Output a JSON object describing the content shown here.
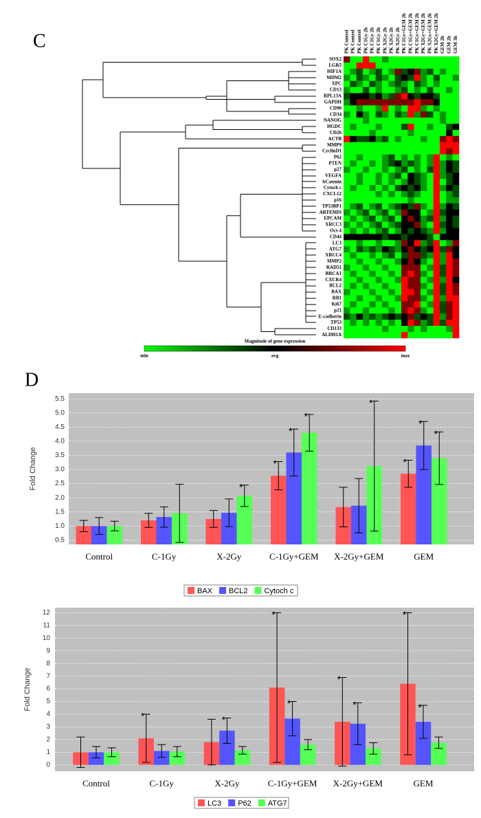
{
  "panels": [
    "C",
    "D"
  ],
  "chart_data": [
    {
      "type": "heatmap",
      "columns": [
        "PK Control",
        "PK Control",
        "PK Control",
        "PK C1Gy 2h",
        "PK C1Gy 2h",
        "PK C1Gy 2h",
        "PK X2Gy 2h",
        "PK X2Gy 2h",
        "PK X2Gy 2h",
        "PK C1Gy+GEM 2h",
        "PK C1Gy+GEM 2h",
        "PK C1Gy+GEM 2h",
        "PK X2Gy+GEM 2h",
        "PK X2Gy+GEM 2h",
        "PK X2Gy+GEM 2h",
        "GEM 2h",
        "GEM 2h",
        "GEM 3h"
      ],
      "rows": [
        "SOX2",
        "LGR5",
        "HIF1A",
        "MDM2",
        "XPC",
        "CD13",
        "RPL13A",
        "GAPDH",
        "CD90",
        "CD34",
        "NANOG",
        "HGDC",
        "CD26",
        "ACTB",
        "MMP9",
        "CyclinD1",
        "P62",
        "PTEN",
        "p27",
        "VEGFA",
        "bCatenin",
        "Cytoch c",
        "CXCL12",
        "p16",
        "TP53BP1",
        "ARTEMIS",
        "EPCAM",
        "XRCC3",
        "Oct-4",
        "CD44",
        "LC3",
        "ATG7",
        "XRCC4",
        "MMP2",
        "RAD51",
        "BRCA1",
        "CXCR4",
        "BCL2",
        "BAX",
        "RB1",
        "Ki67",
        "p21",
        "E-cadherin",
        "TP53",
        "CD133",
        "ALDH1A"
      ],
      "values": [
        [
          0.5,
          -1,
          -1,
          1,
          -1,
          -1,
          -0.6,
          -1,
          -1,
          -1,
          -1,
          -1,
          -1,
          -1,
          -1,
          -1,
          -1,
          -1
        ],
        [
          -1,
          -1,
          1,
          1,
          1,
          -1,
          -1,
          -1,
          -1,
          -1,
          -1,
          -1,
          -1,
          -1,
          -1,
          -1,
          -1,
          -1
        ],
        [
          -1,
          -0.6,
          -0.3,
          -1,
          -0.6,
          -0.3,
          -1,
          -0.6,
          0.5,
          -0.3,
          0,
          0.5,
          -0.6,
          -0.3,
          -1,
          -0.6,
          -1,
          -1
        ],
        [
          -0.6,
          -1,
          -0.3,
          -0.6,
          -1,
          -0.3,
          -0.6,
          -1,
          -0.3,
          0,
          -0.3,
          1,
          -0.6,
          -1,
          -0.3,
          -1,
          -1,
          -0.6
        ],
        [
          -1,
          -0.3,
          -0.6,
          -1,
          -0.3,
          -0.6,
          -1,
          -0.6,
          -0.3,
          -0.6,
          -1,
          -0.3,
          -0.6,
          -1,
          -0.6,
          -1,
          -1,
          -1
        ],
        [
          -0.6,
          -1,
          -1,
          -0.3,
          -1,
          -0.6,
          -1,
          -1,
          -0.6,
          -0.3,
          -1,
          -0.6,
          -1,
          -0.3,
          -1,
          -1,
          -0.6,
          -1
        ],
        [
          -0.3,
          0,
          0,
          0,
          -0.3,
          0,
          -0.6,
          -0.3,
          0.5,
          1,
          0,
          -0.3,
          0,
          0,
          -0.3,
          -1,
          -1,
          -1
        ],
        [
          -0.6,
          0,
          0.5,
          0.5,
          0.5,
          0.5,
          0.5,
          0.5,
          0.5,
          0.5,
          0.5,
          1,
          0.5,
          0.5,
          0,
          -1,
          -1,
          -1
        ],
        [
          -1,
          -1,
          -0.6,
          -1,
          -1,
          -0.6,
          1,
          -1,
          -0.6,
          -1,
          1,
          1,
          -0.6,
          -1,
          -0.6,
          -1,
          -1,
          -1
        ],
        [
          -0.6,
          -1,
          0,
          -0.6,
          -1,
          -0.3,
          -0.6,
          -1,
          -0.3,
          -0.6,
          1,
          -0.6,
          0.5,
          -0.3,
          -1,
          -0.6,
          -1,
          -1
        ],
        [
          -1,
          -1,
          -1,
          -0.6,
          -1,
          -1,
          -1,
          -1,
          -1,
          -1,
          -1,
          -1,
          -1,
          -1,
          -1,
          -0.6,
          -1,
          -1
        ],
        [
          -1,
          -0.6,
          -1,
          -1,
          -1,
          -0.6,
          -1,
          -1,
          -1,
          -0.3,
          1,
          -1,
          -1,
          -0.6,
          -1,
          -1,
          -0.3,
          0
        ],
        [
          -1,
          -1,
          -1,
          -1,
          -0.6,
          -1,
          -1,
          -1,
          -1,
          -1,
          -0.6,
          -1,
          -1,
          -1,
          -1,
          -1,
          0,
          -1
        ],
        [
          1,
          0,
          -0.3,
          -0.3,
          0,
          -0.6,
          -0.3,
          -1,
          -0.6,
          -1,
          -1,
          -1,
          -0.6,
          -1,
          -1,
          0.5,
          1,
          0.5
        ],
        [
          -1,
          -1,
          -1,
          -1,
          -1,
          -1,
          -1,
          -1,
          -1,
          -1,
          -1,
          -1,
          -1,
          -1,
          -1,
          1,
          1,
          1
        ],
        [
          -1,
          -1,
          -1,
          -1,
          -1,
          -1,
          -1,
          -1,
          -1,
          -1,
          -1,
          -1,
          -1,
          -1,
          -1,
          1,
          0.5,
          1
        ],
        [
          -1,
          -1,
          -0.6,
          -1,
          -1,
          -1,
          -0.6,
          -0.3,
          -1,
          -0.6,
          -1,
          -0.6,
          -1,
          -0.6,
          1,
          -1,
          -0.6,
          -1
        ],
        [
          -1,
          -0.6,
          -1,
          -1,
          -0.6,
          -1,
          -0.6,
          -0.3,
          0,
          -0.6,
          -0.3,
          -0.6,
          -1,
          -0.6,
          1,
          -0.6,
          0,
          -0.3
        ],
        [
          -0.6,
          -1,
          -1,
          -0.6,
          -1,
          -1,
          -0.6,
          -1,
          -0.6,
          -0.3,
          -1,
          -0.6,
          -1,
          -0.3,
          1,
          -0.6,
          0,
          -0.3
        ],
        [
          -1,
          -1,
          -0.6,
          -1,
          -1,
          -0.6,
          -1,
          -0.6,
          -0.3,
          -1,
          0,
          -0.3,
          -0.6,
          -1,
          1,
          -0.6,
          -0.3,
          0
        ],
        [
          -1,
          -1,
          -0.6,
          -1,
          -1,
          -0.6,
          -1,
          -0.6,
          -1,
          -0.6,
          0,
          -0.3,
          -0.6,
          -1,
          1,
          -1,
          -0.3,
          0
        ],
        [
          -1,
          -0.6,
          -1,
          -1,
          -0.6,
          -1,
          -0.6,
          -1,
          -0.3,
          0,
          -0.3,
          0,
          -0.6,
          -1,
          1,
          -0.6,
          0,
          -0.3
        ],
        [
          -1,
          -1,
          -1,
          -1,
          -1,
          -0.6,
          -1,
          -0.6,
          -1,
          -0.6,
          -0.3,
          -0.6,
          -1,
          -1,
          1,
          -1,
          -0.6,
          -0.3
        ],
        [
          -1,
          -1,
          -1,
          -1,
          -1,
          -1,
          -1,
          -1,
          -1,
          -1,
          -0.6,
          -1,
          -1,
          -1,
          1,
          -1,
          -0.6,
          -0.6
        ],
        [
          -1,
          -0.6,
          -0.3,
          -1,
          -0.6,
          -0.3,
          -1,
          -0.6,
          -0.3,
          0,
          -0.3,
          0.5,
          -0.6,
          -1,
          1,
          -0.6,
          0,
          -0.3
        ],
        [
          -0.6,
          -1,
          -0.6,
          -0.3,
          -1,
          -0.6,
          -0.3,
          -1,
          -0.6,
          0.5,
          0,
          0,
          -1,
          -0.6,
          1,
          -0.3,
          0,
          0
        ],
        [
          -1,
          -0.6,
          -1,
          -0.6,
          -0.3,
          -1,
          -0.6,
          -0.3,
          -1,
          0,
          0.5,
          0,
          -0.6,
          -0.3,
          1,
          -0.6,
          0,
          -0.3
        ],
        [
          -0.6,
          -1,
          -0.6,
          -1,
          -0.6,
          -0.3,
          -1,
          -0.6,
          -0.3,
          0,
          0,
          0.5,
          -0.6,
          -1,
          1,
          -0.3,
          0,
          -0.3
        ],
        [
          -1,
          -0.6,
          -1,
          -0.6,
          -1,
          -0.6,
          -0.3,
          -1,
          -0.6,
          0,
          -0.3,
          0,
          -0.3,
          -0.6,
          1,
          -0.6,
          0,
          0
        ],
        [
          0,
          0,
          0,
          0,
          0,
          0,
          -0.3,
          0,
          0,
          -0.3,
          0,
          0,
          0,
          -0.3,
          -1,
          0,
          0,
          0
        ],
        [
          -1,
          -1,
          -0.6,
          -1,
          -1,
          -0.6,
          -1,
          -1,
          -0.6,
          0.5,
          0,
          1,
          -0.6,
          -0.3,
          1,
          -1,
          -0.6,
          0.5
        ],
        [
          -0.6,
          -1,
          -0.3,
          -0.6,
          -0.3,
          -0.6,
          0,
          -0.3,
          -0.6,
          0,
          0.5,
          0,
          -0.3,
          0,
          1,
          -0.3,
          0.5,
          0
        ],
        [
          -1,
          -0.6,
          -1,
          -1,
          -0.6,
          -1,
          -0.6,
          -0.3,
          -1,
          -0.3,
          0.5,
          0.5,
          -0.3,
          -0.6,
          1,
          -0.6,
          1,
          0
        ],
        [
          -1,
          -1,
          -0.6,
          -1,
          -1,
          -0.6,
          -1,
          -1,
          -0.6,
          0,
          0.5,
          0,
          -0.6,
          -1,
          1,
          -0.6,
          1,
          0.5
        ],
        [
          -0.6,
          -1,
          -1,
          -0.6,
          -1,
          -1,
          -0.6,
          -1,
          -1,
          0.5,
          0.5,
          0.5,
          -1,
          -0.6,
          1,
          -0.3,
          1,
          0.5
        ],
        [
          -1,
          -0.6,
          -1,
          -1,
          -0.6,
          -1,
          -1,
          -0.6,
          -1,
          0.5,
          1,
          0.5,
          -0.6,
          -1,
          1,
          -0.3,
          1,
          0.5
        ],
        [
          -1,
          -1,
          -0.6,
          -1,
          -1,
          -0.6,
          -1,
          -1,
          -0.6,
          1,
          0.5,
          0.5,
          -1,
          -0.6,
          1,
          -0.6,
          1,
          0
        ],
        [
          -1,
          -0.6,
          -1,
          -0.6,
          -1,
          -1,
          -0.6,
          -1,
          -1,
          1,
          0.5,
          0.5,
          -0.6,
          -1,
          1,
          -0.3,
          1,
          0.5
        ],
        [
          -0.6,
          -1,
          -1,
          -1,
          -0.6,
          -1,
          -1,
          -0.6,
          -1,
          1,
          1,
          0.5,
          -1,
          -0.6,
          1,
          -0.3,
          1,
          0.5
        ],
        [
          -1,
          -1,
          -0.6,
          -1,
          -1,
          -0.6,
          -1,
          -1,
          -0.6,
          1,
          0.5,
          0.5,
          -0.6,
          -1,
          1,
          -0.6,
          1,
          1
        ],
        [
          -1,
          -0.6,
          -1,
          -1,
          -0.6,
          -1,
          -0.6,
          -1,
          -1,
          0.5,
          0.5,
          1,
          -1,
          -0.6,
          1,
          -0.3,
          0.5,
          1
        ],
        [
          -0.6,
          -1,
          -1,
          -0.6,
          -1,
          -1,
          -1,
          -0.6,
          -1,
          0.5,
          1,
          0.5,
          -0.6,
          -1,
          1,
          -0.3,
          0.5,
          1
        ],
        [
          -0.3,
          -0.6,
          0,
          -0.6,
          -0.3,
          -0.6,
          -0.3,
          0,
          -0.3,
          0,
          0.5,
          -0.3,
          0,
          -0.3,
          1,
          -0.6,
          0.5,
          1
        ],
        [
          -1,
          -0.6,
          -1,
          -0.6,
          -1,
          -0.6,
          -1,
          -0.6,
          -1,
          0,
          1,
          0.5,
          -0.6,
          -0.3,
          1,
          -0.3,
          1,
          1
        ],
        [
          -1,
          -1,
          -1,
          -1,
          -1,
          -1,
          -0.6,
          -1,
          -1,
          -1,
          -0.6,
          -1,
          -0.6,
          -1,
          -1,
          -1,
          -0.6,
          1
        ],
        [
          -1,
          -1,
          -1,
          -1,
          -1,
          -1,
          -1,
          -1,
          -1,
          1,
          -1,
          -1,
          -1,
          -1,
          -1,
          -1,
          -1,
          1
        ]
      ],
      "vlim": [
        -1,
        1
      ],
      "color_min": "#00ff00",
      "color_mid": "#000000",
      "color_max": "#ff0000",
      "colorbar_title": "Magnitude of gene expression",
      "colorbar_labels": [
        "min",
        "avg",
        "max"
      ]
    },
    {
      "type": "bar",
      "ylabel": "Fold Change",
      "categories": [
        "Control",
        "C-1Gy",
        "X-2Gy",
        "C-1Gy+GEM",
        "X-2Gy+GEM",
        "GEM"
      ],
      "series": [
        {
          "name": "BAX",
          "color": "#ff5555",
          "values": [
            1.0,
            1.2,
            1.25,
            2.78,
            1.67,
            2.85
          ],
          "errors": [
            0.2,
            0.25,
            0.3,
            0.5,
            0.7,
            0.48
          ],
          "significance": [
            null,
            null,
            null,
            "*",
            null,
            "*"
          ]
        },
        {
          "name": "BCL2",
          "color": "#5555ff",
          "values": [
            1.0,
            1.32,
            1.47,
            3.6,
            1.72,
            3.85
          ],
          "errors": [
            0.3,
            0.36,
            0.49,
            0.83,
            0.96,
            0.85
          ],
          "significance": [
            null,
            null,
            null,
            "*",
            null,
            "*"
          ]
        },
        {
          "name": "Cytoch c",
          "color": "#55ff55",
          "values": [
            1.0,
            1.45,
            2.07,
            4.3,
            3.12,
            3.4
          ],
          "errors": [
            0.17,
            1.03,
            0.38,
            0.65,
            2.3,
            0.93
          ],
          "significance": [
            null,
            null,
            "*",
            "*",
            "*",
            "*"
          ]
        }
      ],
      "ylim": [
        0.35,
        5.7
      ],
      "yticks": [
        0.5,
        {
          "value": 1,
          "label": "1.0"
        },
        1.5,
        {
          "value": 2,
          "label": "2.0"
        },
        2.5,
        {
          "value": 3,
          "label": "3.0"
        },
        3.5,
        {
          "value": 4,
          "label": "4.0"
        },
        4.5,
        {
          "value": 5,
          "label": "5.0"
        },
        5.5
      ],
      "grid": true
    },
    {
      "type": "bar",
      "ylabel": "Fold Change",
      "categories": [
        "Control",
        "C-1Gy",
        "X-2Gy",
        "C-1Gy+GEM",
        "X-2Gy+GEM",
        "GEM"
      ],
      "series": [
        {
          "name": "LC3",
          "color": "#ff5555",
          "values": [
            1.0,
            2.1,
            1.8,
            6.1,
            3.4,
            6.4
          ],
          "errors": [
            1.2,
            1.9,
            1.8,
            5.9,
            3.5,
            5.6
          ],
          "significance": [
            null,
            "*",
            null,
            "*",
            "*",
            "*"
          ]
        },
        {
          "name": "P62",
          "color": "#5555ff",
          "values": [
            1.0,
            1.1,
            2.7,
            3.65,
            3.25,
            3.4
          ],
          "errors": [
            0.45,
            0.5,
            1.0,
            1.35,
            1.65,
            1.3
          ],
          "significance": [
            null,
            null,
            "*",
            "*",
            "*",
            "*"
          ]
        },
        {
          "name": "ATG7",
          "color": "#55ff55",
          "values": [
            1.0,
            1.05,
            1.15,
            1.6,
            1.3,
            1.75
          ],
          "errors": [
            0.35,
            0.4,
            0.3,
            0.4,
            0.45,
            0.45
          ],
          "significance": [
            null,
            null,
            null,
            null,
            null,
            null
          ]
        }
      ],
      "ylim": [
        -0.5,
        12.4
      ],
      "yticks": [
        0,
        1,
        2,
        3,
        4,
        5,
        6,
        7,
        8,
        9,
        10,
        11,
        12
      ],
      "grid": true
    }
  ]
}
